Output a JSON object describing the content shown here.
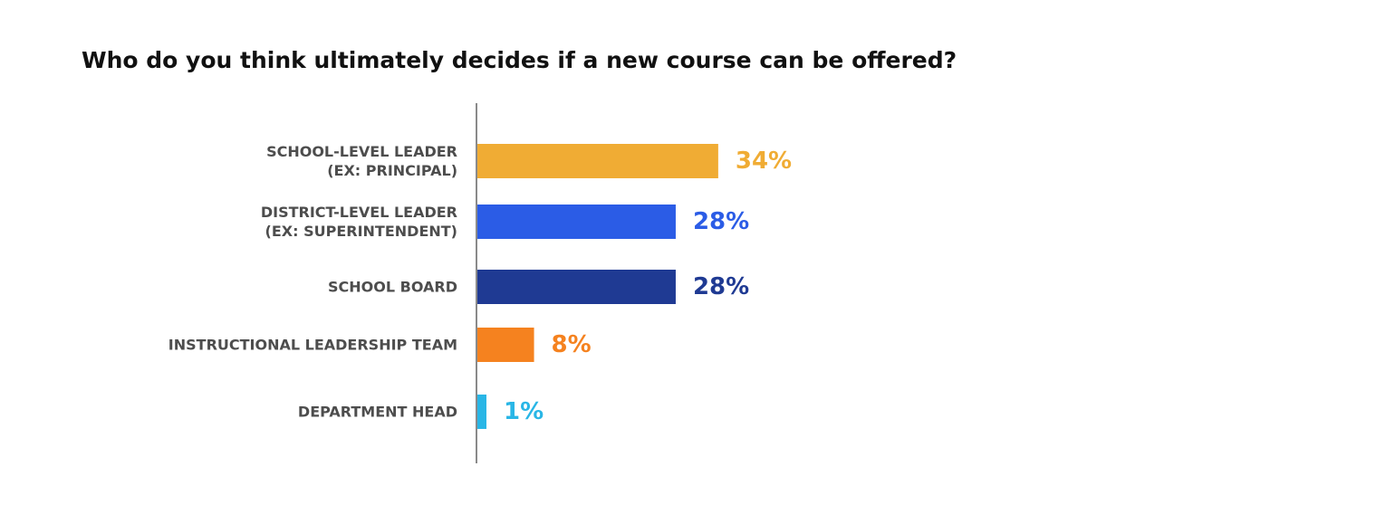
{
  "chart_data": {
    "type": "bar",
    "orientation": "horizontal",
    "title": "Who do you think ultimately decides if a new course can be offered?",
    "categories": [
      [
        "SCHOOL-LEVEL LEADER",
        "(EX: PRINCIPAL)"
      ],
      [
        "DISTRICT-LEVEL LEADER",
        "(EX: SUPERINTENDENT)"
      ],
      [
        "SCHOOL BOARD"
      ],
      [
        "INSTRUCTIONAL LEADERSHIP TEAM"
      ],
      [
        "DEPARTMENT HEAD"
      ]
    ],
    "values": [
      34,
      28,
      28,
      8,
      1
    ],
    "value_labels": [
      "34%",
      "28%",
      "28%",
      "8%",
      "1%"
    ],
    "colors": [
      "#F0AC34",
      "#2B5CE6",
      "#1F3A93",
      "#F5821F",
      "#29B6E6"
    ],
    "xlim": [
      0,
      100
    ],
    "grid": false,
    "legend": "none"
  }
}
